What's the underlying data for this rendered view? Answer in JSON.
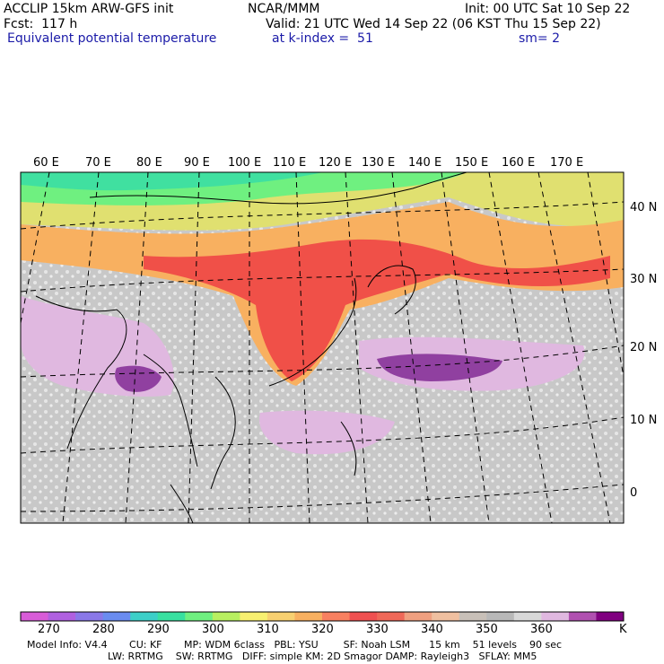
{
  "header": {
    "model": "ACCLIP 15km ARW-GFS init",
    "center": "NCAR/MMM",
    "init": "Init: 00 UTC Sat 10 Sep 22",
    "fcst": "Fcst:  117 h",
    "valid": "Valid: 21 UTC Wed 14 Sep 22 (06 KST Thu 15 Sep 22)",
    "field": "Equivalent potential temperature",
    "level": "at k-index =  51",
    "smooth": "sm= 2"
  },
  "map": {
    "lon_labels": [
      "60 E",
      "70 E",
      "80 E",
      "90 E",
      "100 E",
      "110 E",
      "120 E",
      "130 E",
      "140 E",
      "150 E",
      "160 E",
      "170 E"
    ],
    "lat_labels": [
      "40 N",
      "30 N",
      "20 N",
      "10 N",
      "0"
    ]
  },
  "colorbar": {
    "colors": [
      "#d85cd8",
      "#b060e0",
      "#8a78e8",
      "#6a8cf0",
      "#3ccfc8",
      "#38e0a0",
      "#6ff080",
      "#b8f060",
      "#f8f070",
      "#f8d070",
      "#f8b060",
      "#f88060",
      "#f05050",
      "#f06858",
      "#f0a080",
      "#f0c0a0",
      "#c8c0b8",
      "#b8b8b8",
      "#d8d8d8",
      "#e0b8e0",
      "#b050b0",
      "#800080"
    ],
    "tick_labels": [
      "270",
      "280",
      "290",
      "300",
      "310",
      "320",
      "330",
      "340",
      "350",
      "360"
    ],
    "unit": "K"
  },
  "model_info": {
    "line1": "Model Info: V4.4       CU: KF       MP: WDM 6class   PBL: YSU        SF: Noah LSM      15 km    51 levels    90 sec",
    "line2": "LW: RRTMG    SW: RRTMG   DIFF: simple KM: 2D Smagor DAMP: Rayleigh3   SFLAY: MM5"
  },
  "palette": {
    "cold": "#40e0a0",
    "warm": "#f05048",
    "moist": "#9040a0",
    "neutral": "#c0c0c0"
  }
}
